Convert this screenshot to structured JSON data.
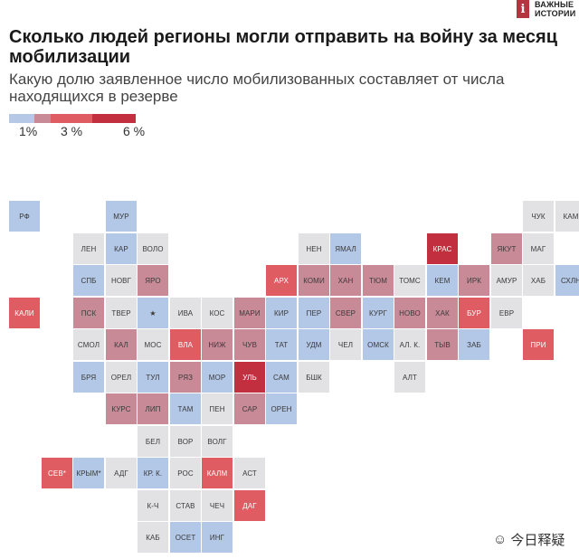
{
  "brand": {
    "mark": "i",
    "name": "ВАЖНЫЕ ИСТОРИИ"
  },
  "title": "Сколько людей регионы могли отправить на войну за месяц мобилизации",
  "subtitle": "Какую долю заявленное число мобилизованных составляет от числа находящихся в резерве",
  "legend": {
    "colors": [
      "#b5c8e6",
      "#c98a98",
      "#e05c63",
      "#c2303f"
    ],
    "labels": [
      "1%",
      "3 %",
      "6 %"
    ]
  },
  "watermark": "今日释疑",
  "chart_data": {
    "type": "tile-grid map",
    "value_encoding": "color category from legend scale",
    "colors": {
      "blue": "#b3c7e6",
      "gray": "#e2e2e5",
      "pink": "#c98a98",
      "red": "#e05c63",
      "darkred": "#c2303f"
    },
    "tiles": [
      {
        "label": "РФ",
        "col": 0,
        "row": 0,
        "color": "blue"
      },
      {
        "label": "МУР",
        "col": 3,
        "row": 0,
        "color": "blue"
      },
      {
        "label": "ЧУК",
        "col": 16,
        "row": 0,
        "color": "gray"
      },
      {
        "label": "КАМ",
        "col": 17,
        "row": 0,
        "color": "gray"
      },
      {
        "label": "ЛЕН",
        "col": 2,
        "row": 1,
        "color": "gray"
      },
      {
        "label": "КАР",
        "col": 3,
        "row": 1,
        "color": "blue"
      },
      {
        "label": "ВОЛО",
        "col": 4,
        "row": 1,
        "color": "gray"
      },
      {
        "label": "НЕН",
        "col": 9,
        "row": 1,
        "color": "gray"
      },
      {
        "label": "ЯМАЛ",
        "col": 10,
        "row": 1,
        "color": "blue"
      },
      {
        "label": "КРАС",
        "col": 13,
        "row": 1,
        "color": "darkred"
      },
      {
        "label": "ЯКУТ",
        "col": 15,
        "row": 1,
        "color": "pink"
      },
      {
        "label": "МАГ",
        "col": 16,
        "row": 1,
        "color": "gray"
      },
      {
        "label": "СПБ",
        "col": 2,
        "row": 2,
        "color": "blue"
      },
      {
        "label": "НОВГ",
        "col": 3,
        "row": 2,
        "color": "gray"
      },
      {
        "label": "ЯРО",
        "col": 4,
        "row": 2,
        "color": "pink"
      },
      {
        "label": "АРХ",
        "col": 8,
        "row": 2,
        "color": "red"
      },
      {
        "label": "КОМИ",
        "col": 9,
        "row": 2,
        "color": "pink"
      },
      {
        "label": "ХАН",
        "col": 10,
        "row": 2,
        "color": "pink"
      },
      {
        "label": "ТЮМ",
        "col": 11,
        "row": 2,
        "color": "pink"
      },
      {
        "label": "ТОМС",
        "col": 12,
        "row": 2,
        "color": "gray"
      },
      {
        "label": "КЕМ",
        "col": 13,
        "row": 2,
        "color": "blue"
      },
      {
        "label": "ИРК",
        "col": 14,
        "row": 2,
        "color": "pink"
      },
      {
        "label": "АМУР",
        "col": 15,
        "row": 2,
        "color": "gray"
      },
      {
        "label": "ХАБ",
        "col": 16,
        "row": 2,
        "color": "gray"
      },
      {
        "label": "СХЛН",
        "col": 17,
        "row": 2,
        "color": "blue"
      },
      {
        "label": "КАЛИ",
        "col": 0,
        "row": 3,
        "color": "red"
      },
      {
        "label": "ПСК",
        "col": 2,
        "row": 3,
        "color": "pink"
      },
      {
        "label": "ТВЕР",
        "col": 3,
        "row": 3,
        "color": "gray"
      },
      {
        "label": "★",
        "col": 4,
        "row": 3,
        "color": "blue"
      },
      {
        "label": "ИВА",
        "col": 5,
        "row": 3,
        "color": "gray"
      },
      {
        "label": "КОС",
        "col": 6,
        "row": 3,
        "color": "gray"
      },
      {
        "label": "МАРИ",
        "col": 7,
        "row": 3,
        "color": "pink"
      },
      {
        "label": "КИР",
        "col": 8,
        "row": 3,
        "color": "blue"
      },
      {
        "label": "ПЕР",
        "col": 9,
        "row": 3,
        "color": "blue"
      },
      {
        "label": "СВЕР",
        "col": 10,
        "row": 3,
        "color": "pink"
      },
      {
        "label": "КУРГ",
        "col": 11,
        "row": 3,
        "color": "blue"
      },
      {
        "label": "НОВО",
        "col": 12,
        "row": 3,
        "color": "pink"
      },
      {
        "label": "ХАК",
        "col": 13,
        "row": 3,
        "color": "pink"
      },
      {
        "label": "БУР",
        "col": 14,
        "row": 3,
        "color": "red"
      },
      {
        "label": "ЕВР",
        "col": 15,
        "row": 3,
        "color": "gray"
      },
      {
        "label": "СМОЛ",
        "col": 2,
        "row": 4,
        "color": "gray"
      },
      {
        "label": "КАЛ",
        "col": 3,
        "row": 4,
        "color": "pink"
      },
      {
        "label": "МОС",
        "col": 4,
        "row": 4,
        "color": "gray"
      },
      {
        "label": "ВЛА",
        "col": 5,
        "row": 4,
        "color": "red"
      },
      {
        "label": "НИЖ",
        "col": 6,
        "row": 4,
        "color": "pink"
      },
      {
        "label": "ЧУВ",
        "col": 7,
        "row": 4,
        "color": "pink"
      },
      {
        "label": "ТАТ",
        "col": 8,
        "row": 4,
        "color": "blue"
      },
      {
        "label": "УДМ",
        "col": 9,
        "row": 4,
        "color": "blue"
      },
      {
        "label": "ЧЕЛ",
        "col": 10,
        "row": 4,
        "color": "gray"
      },
      {
        "label": "ОМСК",
        "col": 11,
        "row": 4,
        "color": "blue"
      },
      {
        "label": "АЛ. К.",
        "col": 12,
        "row": 4,
        "color": "gray"
      },
      {
        "label": "ТЫВ",
        "col": 13,
        "row": 4,
        "color": "pink"
      },
      {
        "label": "ЗАБ",
        "col": 14,
        "row": 4,
        "color": "blue"
      },
      {
        "label": "ПРИ",
        "col": 16,
        "row": 4,
        "color": "red"
      },
      {
        "label": "БРЯ",
        "col": 2,
        "row": 5,
        "color": "blue"
      },
      {
        "label": "ОРЕЛ",
        "col": 3,
        "row": 5,
        "color": "gray"
      },
      {
        "label": "ТУЛ",
        "col": 4,
        "row": 5,
        "color": "blue"
      },
      {
        "label": "РЯЗ",
        "col": 5,
        "row": 5,
        "color": "pink"
      },
      {
        "label": "МОР",
        "col": 6,
        "row": 5,
        "color": "blue"
      },
      {
        "label": "УЛЬ",
        "col": 7,
        "row": 5,
        "color": "darkred"
      },
      {
        "label": "САМ",
        "col": 8,
        "row": 5,
        "color": "blue"
      },
      {
        "label": "БШК",
        "col": 9,
        "row": 5,
        "color": "gray"
      },
      {
        "label": "АЛТ",
        "col": 12,
        "row": 5,
        "color": "gray"
      },
      {
        "label": "КУРС",
        "col": 3,
        "row": 6,
        "color": "pink"
      },
      {
        "label": "ЛИП",
        "col": 4,
        "row": 6,
        "color": "pink"
      },
      {
        "label": "ТАМ",
        "col": 5,
        "row": 6,
        "color": "blue"
      },
      {
        "label": "ПЕН",
        "col": 6,
        "row": 6,
        "color": "gray"
      },
      {
        "label": "САР",
        "col": 7,
        "row": 6,
        "color": "pink"
      },
      {
        "label": "ОРЕН",
        "col": 8,
        "row": 6,
        "color": "blue"
      },
      {
        "label": "БЕЛ",
        "col": 4,
        "row": 7,
        "color": "gray"
      },
      {
        "label": "ВОР",
        "col": 5,
        "row": 7,
        "color": "gray"
      },
      {
        "label": "ВОЛГ",
        "col": 6,
        "row": 7,
        "color": "gray"
      },
      {
        "label": "СЕВ*",
        "col": 1,
        "row": 8,
        "color": "red"
      },
      {
        "label": "КРЫМ*",
        "col": 2,
        "row": 8,
        "color": "blue"
      },
      {
        "label": "АДГ",
        "col": 3,
        "row": 8,
        "color": "gray"
      },
      {
        "label": "КР. К.",
        "col": 4,
        "row": 8,
        "color": "blue"
      },
      {
        "label": "РОС",
        "col": 5,
        "row": 8,
        "color": "gray"
      },
      {
        "label": "КАЛМ",
        "col": 6,
        "row": 8,
        "color": "red"
      },
      {
        "label": "АСТ",
        "col": 7,
        "row": 8,
        "color": "gray"
      },
      {
        "label": "К-Ч",
        "col": 4,
        "row": 9,
        "color": "gray"
      },
      {
        "label": "СТАВ",
        "col": 5,
        "row": 9,
        "color": "gray"
      },
      {
        "label": "ЧЕЧ",
        "col": 6,
        "row": 9,
        "color": "gray"
      },
      {
        "label": "ДАГ",
        "col": 7,
        "row": 9,
        "color": "red"
      },
      {
        "label": "КАБ",
        "col": 4,
        "row": 10,
        "color": "gray"
      },
      {
        "label": "ОСЕТ",
        "col": 5,
        "row": 10,
        "color": "blue"
      },
      {
        "label": "ИНГ",
        "col": 6,
        "row": 10,
        "color": "blue"
      }
    ]
  }
}
